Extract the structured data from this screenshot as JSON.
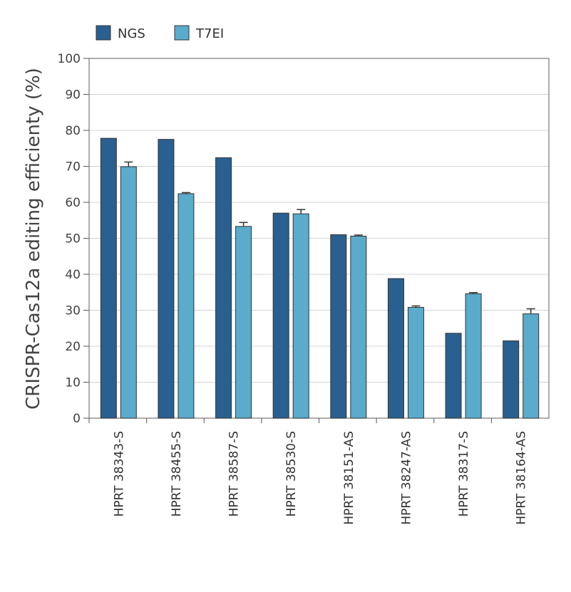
{
  "chart_data": {
    "type": "bar",
    "ylabel": "CRISPR-Cas12a editing efficienty (%)",
    "xlabel": "",
    "ylim": [
      0,
      100
    ],
    "yticks": [
      0,
      10,
      20,
      30,
      40,
      50,
      60,
      70,
      80,
      90,
      100
    ],
    "grid": true,
    "legend_position": "top-left",
    "categories": [
      "HPRT 38343-S",
      "HPRT 38455-S",
      "HPRT 38587-S",
      "HPRT 38530-S",
      "HPRT 38151-AS",
      "HPRT 38247-AS",
      "HPRT 38317-S",
      "HPRT 38164-AS"
    ],
    "series": [
      {
        "name": "NGS",
        "color": "#2a6090",
        "values": [
          77.8,
          77.5,
          72.4,
          57.0,
          51.0,
          38.8,
          23.6,
          21.5
        ],
        "errors": [
          0,
          0,
          0,
          0,
          0,
          0,
          0,
          0
        ]
      },
      {
        "name": "T7EI",
        "color": "#5aabcc",
        "values": [
          69.9,
          62.4,
          53.3,
          56.8,
          50.6,
          30.8,
          34.6,
          29.0
        ],
        "errors": [
          1.3,
          0.3,
          1.1,
          1.2,
          0.3,
          0.4,
          0.3,
          1.4
        ]
      }
    ]
  }
}
